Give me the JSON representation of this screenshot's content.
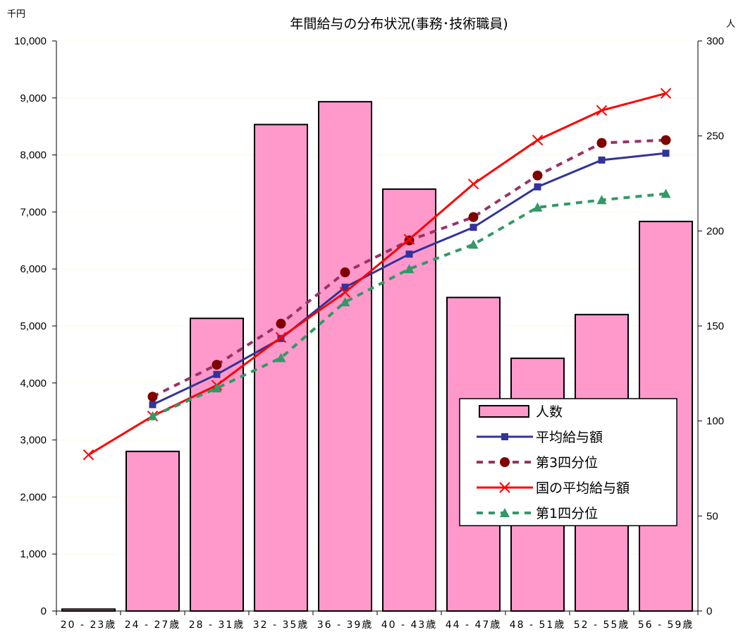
{
  "chart_data": {
    "type": "bar",
    "title": "年間給与の分布状況(事務･技術職員)",
    "left_unit": "千円",
    "right_unit": "人",
    "left_axis": {
      "ylim": [
        0,
        10000
      ],
      "ticks": [
        "0",
        "1,000",
        "2,000",
        "3,000",
        "4,000",
        "5,000",
        "6,000",
        "7,000",
        "8,000",
        "9,000",
        "10,000"
      ]
    },
    "right_axis": {
      "ylim": [
        0,
        300
      ],
      "ticks": [
        "0",
        "50",
        "100",
        "150",
        "200",
        "250",
        "300"
      ]
    },
    "categories": [
      "20 - 23歳",
      "24 - 27歳",
      "28 - 31歳",
      "32 - 35歳",
      "36 - 39歳",
      "40 - 43歳",
      "44 - 47歳",
      "48 - 51歳",
      "52 - 55歳",
      "56 - 59歳"
    ],
    "bars": {
      "name": "人数",
      "axis": "right",
      "color": "#ff99cc",
      "values": [
        1,
        84,
        154,
        256,
        268,
        222,
        165,
        133,
        156,
        205
      ]
    },
    "series": [
      {
        "name": "平均給与額",
        "axis": "left",
        "color": "#333399",
        "style": "solid",
        "marker": "square",
        "values": [
          null,
          3620,
          4150,
          4780,
          5680,
          6260,
          6730,
          7440,
          7910,
          8030
        ]
      },
      {
        "name": "第3四分位",
        "axis": "left",
        "color": "#993366",
        "style": "dashed",
        "marker": "circle",
        "marker_color": "#800000",
        "values": [
          null,
          3760,
          4320,
          5040,
          5940,
          6500,
          6910,
          7640,
          8210,
          8260
        ]
      },
      {
        "name": "国の平均給与額",
        "axis": "left",
        "color": "#ff0000",
        "style": "solid",
        "marker": "x",
        "values": [
          2740,
          3420,
          3960,
          4800,
          5590,
          6520,
          7490,
          8260,
          8780,
          9080
        ]
      },
      {
        "name": "第1四分位",
        "axis": "left",
        "color": "#339966",
        "style": "dashed",
        "marker": "triangle",
        "values": [
          null,
          3420,
          3910,
          4440,
          5420,
          6000,
          6430,
          7080,
          7210,
          7320
        ]
      }
    ],
    "legend": {
      "position": "right-inside",
      "entries": [
        "人数",
        "平均給与額",
        "第3四分位",
        "国の平均給与額",
        "第1四分位"
      ]
    },
    "grid": true
  }
}
